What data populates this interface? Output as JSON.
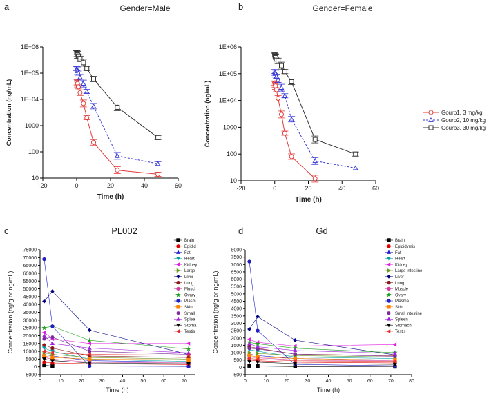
{
  "chart_data": [
    {
      "panel": "a",
      "type": "line",
      "title": "Gender=Male",
      "xlabel": "Time (h)",
      "ylabel": "Concentration (ng/mL)",
      "yscale": "log",
      "xlim": [
        -20,
        60
      ],
      "ylim": [
        10,
        1000000
      ],
      "xticks": [
        "-20",
        "0",
        "20",
        "40",
        "60"
      ],
      "yticks": [
        "10",
        "100",
        "1000",
        "1E+04",
        "1E+05",
        "1E+06"
      ],
      "series": [
        {
          "name": "Gourp1, 3 mg/kg",
          "color": "#e23b3b",
          "marker": "circle",
          "dash": "solid",
          "x": [
            0,
            0.25,
            0.5,
            1,
            2,
            4,
            6,
            10,
            24,
            48
          ],
          "y": [
            50000,
            45000,
            40000,
            30000,
            18000,
            7000,
            2000,
            230,
            20,
            14
          ]
        },
        {
          "name": "Gourp2, 10 mg/kg",
          "color": "#3a3ad6",
          "marker": "triangle",
          "dash": "dash",
          "x": [
            0,
            0.25,
            0.5,
            1,
            2,
            4,
            6,
            10,
            24,
            48
          ],
          "y": [
            150000,
            140000,
            120000,
            100000,
            70000,
            40000,
            20000,
            5500,
            70,
            35
          ]
        },
        {
          "name": "Gourp3, 30 mg/kg",
          "color": "#333333",
          "marker": "square",
          "dash": "solid",
          "x": [
            0,
            0.25,
            0.5,
            1,
            2,
            4,
            6,
            10,
            24,
            48
          ],
          "y": [
            600000,
            550000,
            500000,
            450000,
            350000,
            250000,
            150000,
            60000,
            5000,
            350
          ]
        }
      ]
    },
    {
      "panel": "b",
      "type": "line",
      "title": "Gender=Female",
      "xlabel": "Time (h)",
      "ylabel": "Concentration (ng/mL)",
      "yscale": "log",
      "xlim": [
        -20,
        60
      ],
      "ylim": [
        10,
        1000000
      ],
      "xticks": [
        "-20",
        "0",
        "20",
        "40",
        "60"
      ],
      "yticks": [
        "10",
        "100",
        "1000",
        "1E+04",
        "1E+05",
        "1E+06"
      ],
      "series": [
        {
          "name": "Gourp1, 3 mg/kg",
          "color": "#e23b3b",
          "marker": "circle",
          "dash": "solid",
          "x": [
            0,
            0.25,
            0.5,
            1,
            2,
            4,
            6,
            10,
            24
          ],
          "y": [
            45000,
            40000,
            35000,
            25000,
            12000,
            3000,
            600,
            80,
            12
          ]
        },
        {
          "name": "Gourp2, 10 mg/kg",
          "color": "#3a3ad6",
          "marker": "triangle",
          "dash": "dash",
          "x": [
            0,
            0.25,
            0.5,
            1,
            2,
            4,
            6,
            10,
            24,
            48
          ],
          "y": [
            120000,
            110000,
            100000,
            80000,
            60000,
            30000,
            15000,
            2000,
            55,
            30
          ]
        },
        {
          "name": "Gourp3, 30 mg/kg",
          "color": "#333333",
          "marker": "square",
          "dash": "solid",
          "x": [
            0,
            0.25,
            0.5,
            1,
            2,
            4,
            6,
            10,
            24,
            48
          ],
          "y": [
            500000,
            450000,
            400000,
            350000,
            300000,
            200000,
            120000,
            50000,
            350,
            100
          ]
        }
      ]
    },
    {
      "panel": "c",
      "type": "line",
      "title": "PL002",
      "xlabel": "Time (h)",
      "ylabel": "Concentration (ng/g or ng/mL)",
      "xlim": [
        0,
        75
      ],
      "ylim": [
        -5000,
        75000
      ],
      "xticks": [
        "0",
        "10",
        "20",
        "30",
        "40",
        "50",
        "60",
        "70"
      ],
      "yticks": [
        "-5000",
        "0",
        "5000",
        "10000",
        "15000",
        "20000",
        "25000",
        "30000",
        "35000",
        "40000",
        "45000",
        "50000",
        "55000",
        "60000",
        "65000",
        "70000",
        "75000"
      ],
      "x": [
        2,
        6,
        24,
        72
      ],
      "series": [
        {
          "name": "Brain",
          "color": "#000000",
          "marker": "square",
          "values": [
            1000,
            500,
            null,
            null
          ]
        },
        {
          "name": "Epididymis",
          "legend": "Epidid",
          "color": "#e00000",
          "marker": "circle",
          "values": [
            3000,
            2500,
            2000,
            1500
          ]
        },
        {
          "name": "Fat",
          "color": "#2020d0",
          "marker": "triangle",
          "values": [
            8000,
            7000,
            4000,
            3000
          ]
        },
        {
          "name": "Heart",
          "color": "#00a0a0",
          "marker": "triangle-down",
          "values": [
            12000,
            10000,
            5000,
            3500
          ]
        },
        {
          "name": "Kidney",
          "color": "#e020e0",
          "marker": "triangle-left",
          "values": [
            22000,
            18000,
            15000,
            15000
          ]
        },
        {
          "name": "Large intestine",
          "legend": "Large",
          "color": "#6a9a20",
          "marker": "triangle-right",
          "values": [
            9000,
            8000,
            6000,
            5000
          ]
        },
        {
          "name": "Liver",
          "color": "#000080",
          "marker": "diamond",
          "values": [
            42000,
            48500,
            23500,
            8000
          ]
        },
        {
          "name": "Lung",
          "color": "#8a1a1a",
          "marker": "circle",
          "values": [
            14000,
            12000,
            7000,
            6000
          ]
        },
        {
          "name": "Muscle",
          "legend": "Muscl",
          "color": "#d040a0",
          "marker": "circle",
          "values": [
            6000,
            5000,
            3000,
            2500
          ]
        },
        {
          "name": "Ovary",
          "color": "#20a020",
          "marker": "star",
          "values": [
            25000,
            26000,
            17000,
            11500
          ]
        },
        {
          "name": "Plasma",
          "legend": "Plasm",
          "color": "#2020c0",
          "marker": "circle",
          "values": [
            69000,
            26000,
            500,
            200
          ]
        },
        {
          "name": "Skin",
          "color": "#ff8000",
          "marker": "square",
          "values": [
            7000,
            6000,
            5000,
            4500
          ]
        },
        {
          "name": "Small intestine",
          "legend": "Small",
          "color": "#7a2a9a",
          "marker": "hexagon",
          "values": [
            18000,
            19000,
            10000,
            8000
          ]
        },
        {
          "name": "Spleen",
          "legend": "Splee",
          "color": "#a020e0",
          "marker": "triangle",
          "values": [
            20000,
            15000,
            12000,
            9000
          ]
        },
        {
          "name": "Stomach",
          "legend": "Stoma",
          "color": "#000000",
          "marker": "triangle-down",
          "values": [
            5000,
            4000,
            2500,
            2000
          ]
        },
        {
          "name": "Testis",
          "legend": "Testis",
          "color": "#e03030",
          "marker": "triangle-left",
          "values": [
            10000,
            9000,
            8000,
            7500
          ]
        }
      ]
    },
    {
      "panel": "d",
      "type": "line",
      "title": "Gd",
      "xlabel": "Time (h)",
      "ylabel": "Concentration (ng/g or ng/mL)",
      "xlim": [
        0,
        80
      ],
      "ylim": [
        -500,
        8000
      ],
      "xticks": [
        "0",
        "10",
        "20",
        "30",
        "40",
        "50",
        "60",
        "70",
        "80"
      ],
      "yticks": [
        "-500",
        "0",
        "500",
        "1000",
        "1500",
        "2000",
        "2500",
        "3000",
        "3500",
        "4000",
        "4500",
        "5000",
        "5500",
        "6000",
        "6500",
        "7000",
        "7500",
        "8000"
      ],
      "x": [
        2,
        6,
        24,
        72
      ],
      "series": [
        {
          "name": "Brain",
          "color": "#000000",
          "marker": "square",
          "values": [
            100,
            80,
            50,
            40
          ]
        },
        {
          "name": "Epididymis",
          "color": "#e00000",
          "marker": "circle",
          "values": [
            500,
            450,
            350,
            300
          ]
        },
        {
          "name": "Fat",
          "color": "#2020d0",
          "marker": "triangle",
          "values": [
            900,
            800,
            600,
            500
          ]
        },
        {
          "name": "Heart",
          "color": "#00a0a0",
          "marker": "triangle-down",
          "values": [
            1200,
            1100,
            700,
            600
          ]
        },
        {
          "name": "Kidney",
          "color": "#e020e0",
          "marker": "triangle-left",
          "values": [
            1900,
            1700,
            1450,
            1550
          ]
        },
        {
          "name": "Large intestine",
          "color": "#6a9a20",
          "marker": "triangle-right",
          "values": [
            1000,
            950,
            800,
            700
          ]
        },
        {
          "name": "Liver",
          "color": "#000080",
          "marker": "diamond",
          "values": [
            2600,
            3450,
            1850,
            850
          ]
        },
        {
          "name": "Lung",
          "color": "#8a1a1a",
          "marker": "circle",
          "values": [
            1400,
            1300,
            900,
            800
          ]
        },
        {
          "name": "Muscle",
          "color": "#d040a0",
          "marker": "circle",
          "values": [
            700,
            650,
            500,
            450
          ]
        },
        {
          "name": "Ovary",
          "color": "#20a020",
          "marker": "star",
          "values": [
            1700,
            1600,
            1300,
            1000
          ]
        },
        {
          "name": "Plasma",
          "color": "#2020c0",
          "marker": "circle",
          "values": [
            7200,
            2500,
            200,
            100
          ]
        },
        {
          "name": "Skin",
          "color": "#ff8000",
          "marker": "square",
          "values": [
            800,
            700,
            600,
            500
          ]
        },
        {
          "name": "Small intestine",
          "color": "#7a2a9a",
          "marker": "hexagon",
          "values": [
            1300,
            1250,
            900,
            750
          ]
        },
        {
          "name": "Spleen",
          "color": "#a020e0",
          "marker": "triangle",
          "values": [
            1600,
            1400,
            1150,
            950
          ]
        },
        {
          "name": "Stomach",
          "color": "#000000",
          "marker": "triangle-down",
          "values": [
            400,
            350,
            250,
            200
          ]
        },
        {
          "name": "Testis",
          "color": "#e03030",
          "marker": "triangle-left",
          "values": [
            600,
            550,
            450,
            400
          ]
        }
      ]
    }
  ]
}
